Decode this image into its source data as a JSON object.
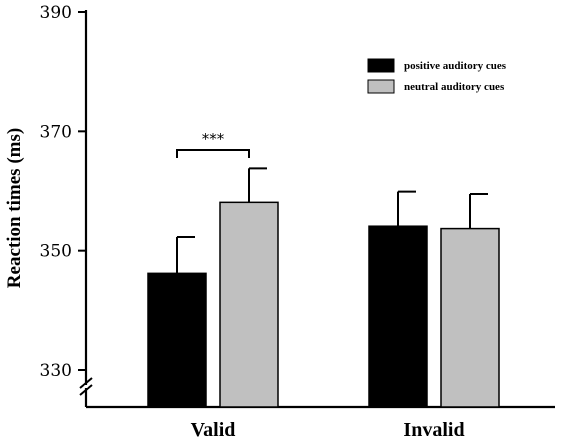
{
  "chart_data": {
    "type": "bar",
    "categories": [
      "Valid",
      "Invalid"
    ],
    "series": [
      {
        "name": "positive auditory cues",
        "color": "#000000",
        "values": [
          346.2,
          354.1
        ],
        "errors": [
          6.1,
          5.8
        ]
      },
      {
        "name": "neutral auditory cues",
        "color": "#c0c0c0",
        "values": [
          358.1,
          353.7
        ],
        "errors": [
          5.7,
          5.8
        ]
      }
    ],
    "ylabel": "Reaction times (ms)",
    "xlabel": "",
    "ylim": [
      330,
      390
    ],
    "yticks": [
      330,
      350,
      370,
      390
    ],
    "axis_break": true,
    "legend_position": "top-right",
    "annotations": [
      {
        "type": "significance",
        "text": "***",
        "category": "Valid",
        "between": [
          "positive auditory cues",
          "neutral auditory cues"
        ]
      }
    ]
  }
}
